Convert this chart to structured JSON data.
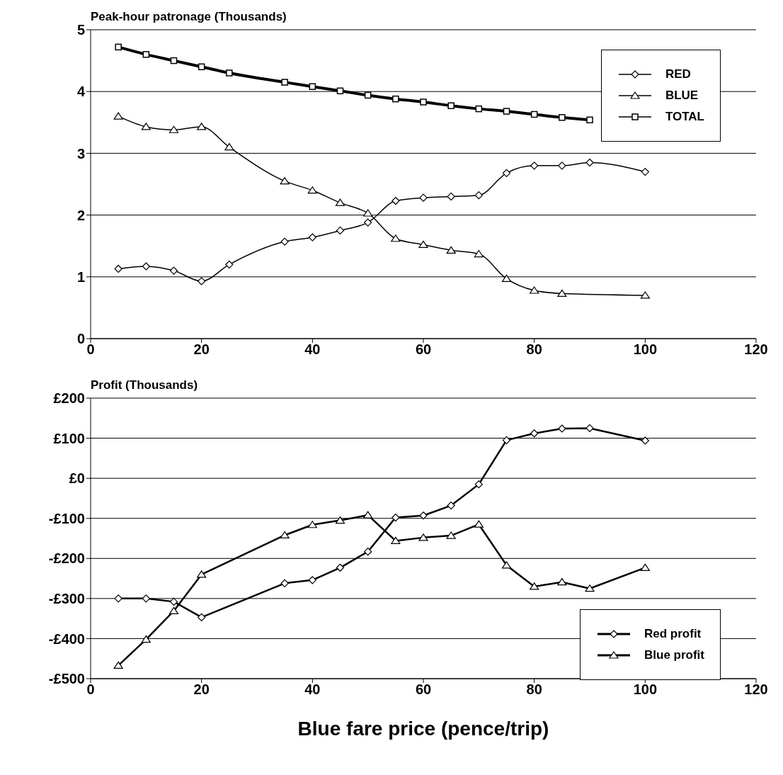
{
  "chart_data": [
    {
      "type": "line",
      "title": "Peak-hour patronage (Thousands)",
      "x": [
        5,
        10,
        15,
        20,
        25,
        35,
        40,
        45,
        50,
        55,
        60,
        65,
        70,
        75,
        80,
        85,
        90,
        100
      ],
      "series": [
        {
          "name": "RED",
          "color": "#000000",
          "marker": "diamond",
          "values": [
            1.13,
            1.17,
            1.1,
            0.93,
            1.2,
            1.57,
            1.64,
            1.75,
            1.88,
            2.23,
            2.28,
            2.3,
            2.32,
            2.68,
            2.8,
            2.8,
            2.85,
            2.7
          ]
        },
        {
          "name": "BLUE",
          "color": "#000000",
          "marker": "triangle",
          "x": [
            5,
            10,
            15,
            20,
            25,
            35,
            40,
            45,
            50,
            55,
            60,
            65,
            70,
            75,
            80,
            85,
            100
          ],
          "values": [
            3.6,
            3.43,
            3.38,
            3.43,
            3.1,
            2.55,
            2.4,
            2.2,
            2.03,
            1.62,
            1.52,
            1.43,
            1.37,
            0.97,
            0.78,
            0.73,
            0.7
          ]
        },
        {
          "name": "TOTAL",
          "color": "#000000",
          "marker": "square",
          "values": [
            4.72,
            4.6,
            4.5,
            4.4,
            4.3,
            4.15,
            4.08,
            4.01,
            3.94,
            3.88,
            3.83,
            3.77,
            3.72,
            3.68,
            3.63,
            3.58,
            3.54,
            null
          ]
        }
      ],
      "xlim": [
        0,
        120
      ],
      "xticks": [
        0,
        20,
        40,
        60,
        80,
        100,
        120
      ],
      "ylim": [
        0,
        5
      ],
      "yticks": [
        0,
        1,
        2,
        3,
        4,
        5
      ],
      "grid": "y",
      "legend": "top right",
      "line_style": "solid"
    },
    {
      "type": "line",
      "title": "Profit (Thousands)",
      "xlabel": "Blue fare price (pence/trip)",
      "x": [
        5,
        10,
        15,
        20,
        35,
        40,
        45,
        50,
        55,
        60,
        65,
        70,
        75,
        80,
        85,
        90,
        100
      ],
      "series": [
        {
          "name": "Red profit",
          "color": "#000000",
          "marker": "diamond",
          "values": [
            -300,
            -300,
            -308,
            -347,
            -262,
            -254,
            -223,
            -183,
            -98,
            -93,
            -68,
            -15,
            95,
            112,
            124,
            125,
            94
          ]
        },
        {
          "name": "Blue profit",
          "color": "#000000",
          "marker": "triangle",
          "values": [
            -467,
            -402,
            -331,
            -240,
            -142,
            -116,
            -105,
            -92,
            -156,
            -148,
            -143,
            -115,
            -217,
            -270,
            -259,
            -275,
            -223
          ]
        }
      ],
      "xlim": [
        0,
        120
      ],
      "xticks": [
        0,
        20,
        40,
        60,
        80,
        100,
        120
      ],
      "ylim": [
        -500,
        200
      ],
      "yticks": [
        {
          "value": -500,
          "label": "-£500"
        },
        {
          "value": -400,
          "label": "-£400"
        },
        {
          "value": -300,
          "label": "-£300"
        },
        {
          "value": -200,
          "label": "-£200"
        },
        {
          "value": -100,
          "label": "-£100"
        },
        {
          "value": 0,
          "label": "£0"
        },
        {
          "value": 100,
          "label": "£100"
        },
        {
          "value": 200,
          "label": "£200"
        }
      ],
      "grid": "y",
      "legend": "bottom right",
      "line_style": "solid"
    }
  ]
}
